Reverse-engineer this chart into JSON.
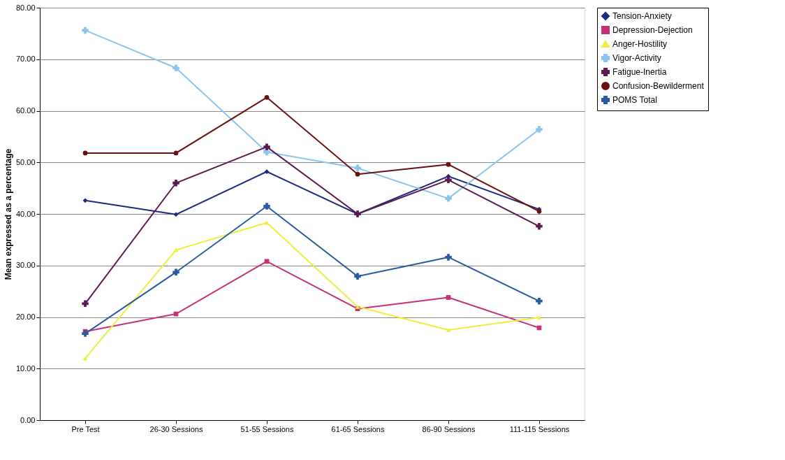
{
  "chart_data": {
    "type": "line",
    "ylabel": "Mean  expressed as a percentage",
    "categories": [
      "Pre Test",
      "26-30 Sessions",
      "51-55 Sessions",
      "61-65 Sessions",
      "86-90 Sessions",
      "111-115 Sessions"
    ],
    "series": [
      {
        "name": "Tension-Anxiety",
        "color": "#1c2a80",
        "marker": "diamond",
        "values": [
          42.6,
          39.9,
          48.2,
          40.0,
          47.3,
          40.9
        ]
      },
      {
        "name": "Depression-Dejection",
        "color": "#c8307a",
        "marker": "square",
        "values": [
          17.2,
          20.6,
          30.8,
          21.6,
          23.8,
          17.9
        ]
      },
      {
        "name": "Anger-Hostility",
        "color": "#eeee40",
        "marker": "triangle",
        "values": [
          12.0,
          33.0,
          38.3,
          22.0,
          17.5,
          19.9
        ]
      },
      {
        "name": "Vigor-Activity",
        "color": "#8cc4ee",
        "marker": "cross",
        "values": [
          75.6,
          68.3,
          52.0,
          48.9,
          43.0,
          56.4
        ]
      },
      {
        "name": "Fatigue-Inertia",
        "color": "#5a1a50",
        "marker": "cross",
        "values": [
          22.6,
          46.0,
          53.0,
          40.0,
          46.6,
          37.6
        ]
      },
      {
        "name": "Confusion-Bewilderment",
        "color": "#6a1010",
        "marker": "circle",
        "values": [
          51.8,
          51.8,
          62.6,
          47.7,
          49.6,
          40.5
        ]
      },
      {
        "name": "POMS Total",
        "color": "#2a5aa0",
        "marker": "cross",
        "values": [
          16.8,
          28.7,
          41.5,
          27.9,
          31.6,
          23.1
        ]
      }
    ],
    "ylim": [
      0,
      80
    ],
    "yticks": [
      {
        "value": 0,
        "label": "0.00"
      },
      {
        "value": 10,
        "label": "10.00"
      },
      {
        "value": 20,
        "label": "20.00"
      },
      {
        "value": 30,
        "label": "30.00"
      },
      {
        "value": 40,
        "label": "40.00"
      },
      {
        "value": 50,
        "label": "50.00"
      },
      {
        "value": 60,
        "label": "60.00"
      },
      {
        "value": 70,
        "label": "70.00"
      },
      {
        "value": 80,
        "label": "80.00"
      }
    ],
    "grid": "y",
    "legend": "right"
  }
}
